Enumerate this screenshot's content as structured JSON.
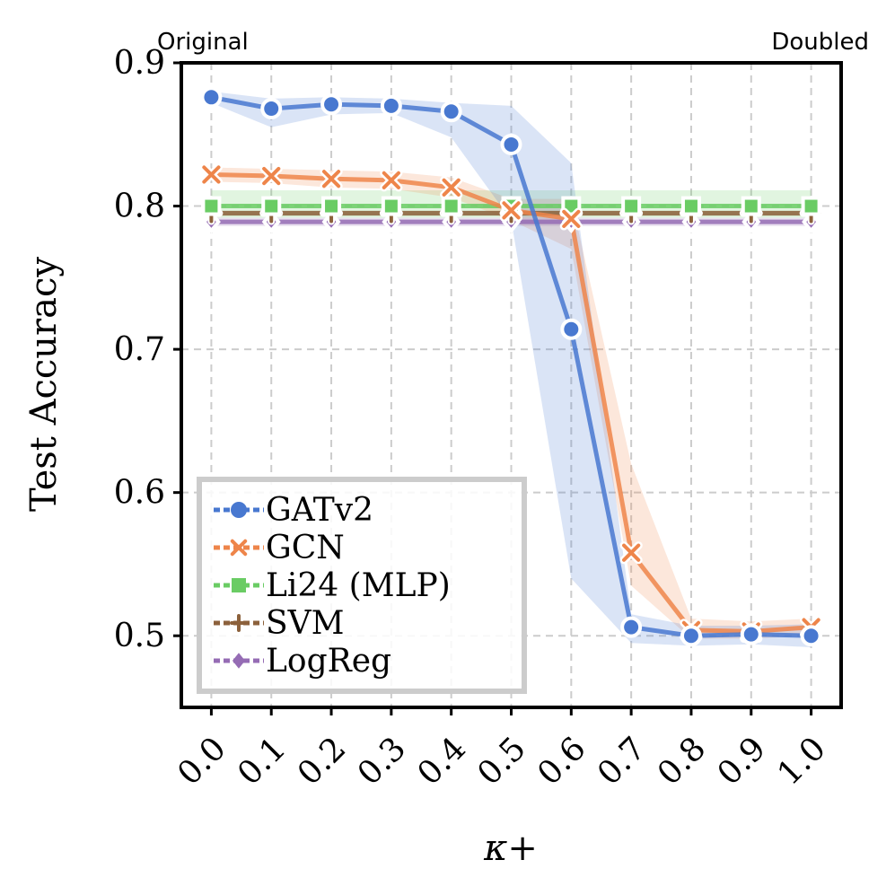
{
  "chart_data": {
    "type": "line",
    "xlabel": "κ+",
    "ylabel": "Test Accuracy",
    "corner_labels": {
      "left": "Original",
      "right": "Doubled"
    },
    "x": [
      0.0,
      0.1,
      0.2,
      0.3,
      0.4,
      0.5,
      0.6,
      0.7,
      0.8,
      0.9,
      1.0
    ],
    "x_tick_labels": [
      "0.0",
      "0.1",
      "0.2",
      "0.3",
      "0.4",
      "0.5",
      "0.6",
      "0.7",
      "0.8",
      "0.9",
      "1.0"
    ],
    "y_ticks": [
      0.5,
      0.6,
      0.7,
      0.8,
      0.9
    ],
    "y_tick_labels": [
      "0.5",
      "0.6",
      "0.7",
      "0.8",
      "0.9"
    ],
    "xlim": [
      -0.05,
      1.05
    ],
    "ylim": [
      0.45,
      0.9
    ],
    "grid": true,
    "legend_position": "lower-left",
    "series": [
      {
        "name": "GATv2",
        "color": "#4878d0",
        "marker": "circle",
        "values": [
          0.876,
          0.868,
          0.871,
          0.87,
          0.866,
          0.843,
          0.714,
          0.506,
          0.5,
          0.501,
          0.5
        ],
        "lower": [
          0.872,
          0.855,
          0.864,
          0.865,
          0.848,
          0.79,
          0.54,
          0.495,
          0.493,
          0.494,
          0.492
        ],
        "upper": [
          0.88,
          0.875,
          0.876,
          0.875,
          0.872,
          0.87,
          0.83,
          0.515,
          0.507,
          0.507,
          0.508
        ]
      },
      {
        "name": "GCN",
        "color": "#ee854a",
        "marker": "x",
        "values": [
          0.822,
          0.821,
          0.819,
          0.818,
          0.813,
          0.797,
          0.791,
          0.558,
          0.504,
          0.503,
          0.506
        ],
        "lower": [
          0.817,
          0.816,
          0.813,
          0.812,
          0.806,
          0.79,
          0.77,
          0.535,
          0.498,
          0.498,
          0.5
        ],
        "upper": [
          0.827,
          0.826,
          0.825,
          0.824,
          0.82,
          0.805,
          0.805,
          0.62,
          0.512,
          0.51,
          0.512
        ]
      },
      {
        "name": "Li24 (MLP)",
        "color": "#6acc64",
        "marker": "square",
        "values": [
          0.8,
          0.8,
          0.8,
          0.8,
          0.8,
          0.8,
          0.8,
          0.8,
          0.8,
          0.8,
          0.8
        ],
        "lower": [
          0.792,
          0.792,
          0.792,
          0.792,
          0.792,
          0.792,
          0.792,
          0.792,
          0.792,
          0.792,
          0.792
        ],
        "upper": [
          0.811,
          0.811,
          0.811,
          0.811,
          0.811,
          0.811,
          0.811,
          0.811,
          0.811,
          0.811,
          0.811
        ]
      },
      {
        "name": "SVM",
        "color": "#8c613c",
        "marker": "plus",
        "values": [
          0.795,
          0.795,
          0.795,
          0.795,
          0.795,
          0.795,
          0.795,
          0.795,
          0.795,
          0.795,
          0.795
        ],
        "lower": [
          0.793,
          0.793,
          0.793,
          0.793,
          0.793,
          0.793,
          0.793,
          0.793,
          0.793,
          0.793,
          0.793
        ],
        "upper": [
          0.797,
          0.797,
          0.797,
          0.797,
          0.797,
          0.797,
          0.797,
          0.797,
          0.797,
          0.797,
          0.797
        ]
      },
      {
        "name": "LogReg",
        "color": "#956cb4",
        "marker": "diamond",
        "values": [
          0.789,
          0.789,
          0.789,
          0.789,
          0.789,
          0.789,
          0.789,
          0.789,
          0.789,
          0.789,
          0.789
        ],
        "lower": [
          0.786,
          0.786,
          0.786,
          0.786,
          0.786,
          0.786,
          0.786,
          0.786,
          0.786,
          0.786,
          0.786
        ],
        "upper": [
          0.792,
          0.792,
          0.792,
          0.792,
          0.792,
          0.792,
          0.792,
          0.792,
          0.792,
          0.792,
          0.792
        ]
      }
    ]
  }
}
